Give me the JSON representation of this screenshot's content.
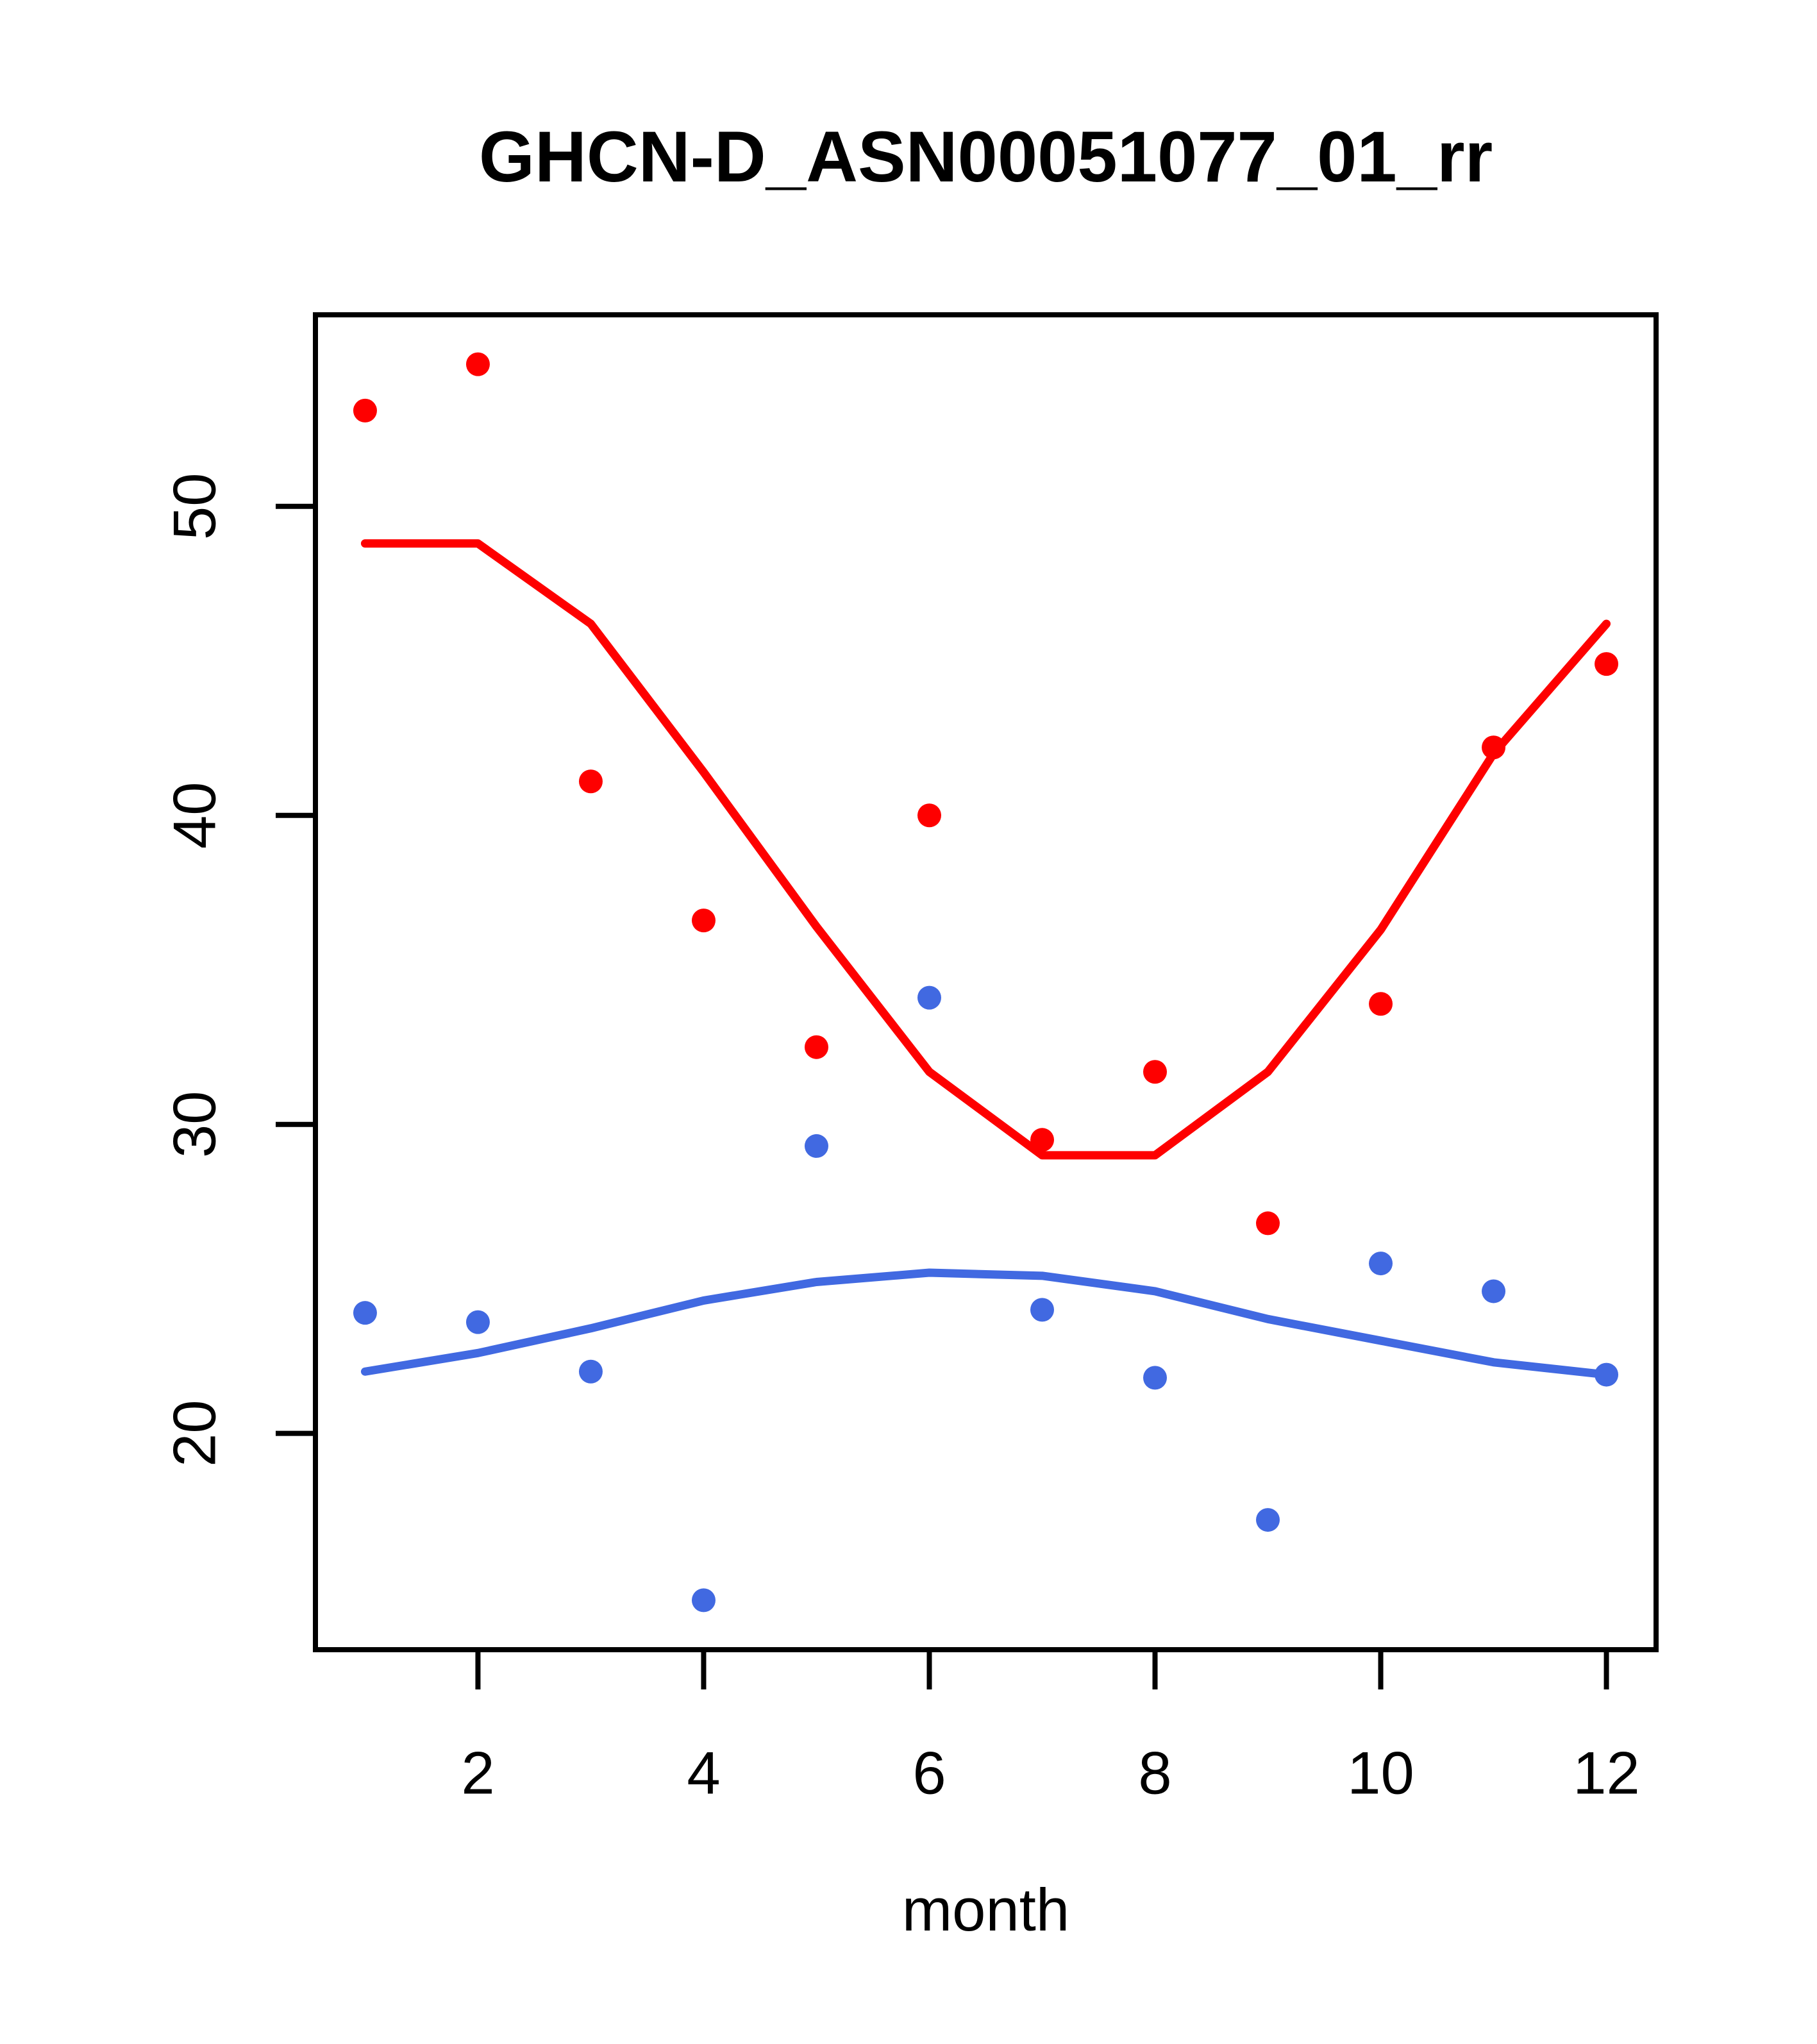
{
  "figure": {
    "title": "GHCN-D_ASN00051077_01_rr",
    "x_axis_label": "month"
  },
  "colors": {
    "series1_red": "#FE0000",
    "series2_blue": "#4169E1",
    "axis": "#000000",
    "background": "#FFFFFF"
  },
  "chart_data": {
    "type": "scatter",
    "title": "GHCN-D_ASN00051077_01_rr",
    "xlabel": "month",
    "ylabel": "",
    "x": [
      1,
      2,
      3,
      4,
      5,
      6,
      7,
      8,
      9,
      10,
      11,
      12
    ],
    "x_ticks": [
      2,
      4,
      6,
      8,
      10,
      12
    ],
    "y_ticks": [
      20,
      30,
      40,
      50
    ],
    "xlim": [
      0.56,
      12.44
    ],
    "ylim": [
      13.0,
      56.2
    ],
    "grid": false,
    "legend": null,
    "series": [
      {
        "name": "red-monthly-points",
        "style": "points",
        "color": "#FE0000",
        "values": [
          53.1,
          54.6,
          41.1,
          36.6,
          32.5,
          40.0,
          29.5,
          31.7,
          26.8,
          33.9,
          42.2,
          44.9
        ]
      },
      {
        "name": "red-lowess-line",
        "style": "line",
        "color": "#FE0000",
        "values": [
          48.8,
          48.8,
          46.2,
          41.4,
          36.4,
          31.7,
          29.0,
          29.0,
          31.7,
          36.3,
          42.0,
          46.2
        ]
      },
      {
        "name": "blue-monthly-points",
        "style": "points",
        "color": "#4169E1",
        "values": [
          23.9,
          23.6,
          22.0,
          14.6,
          29.3,
          34.1,
          24.0,
          21.8,
          17.2,
          25.5,
          24.6,
          21.9
        ]
      },
      {
        "name": "blue-lowess-line",
        "style": "line",
        "color": "#4169E1",
        "values": [
          22.0,
          22.6,
          23.4,
          24.3,
          24.9,
          25.2,
          25.1,
          24.6,
          23.7,
          23.0,
          22.3,
          21.9
        ]
      }
    ]
  }
}
